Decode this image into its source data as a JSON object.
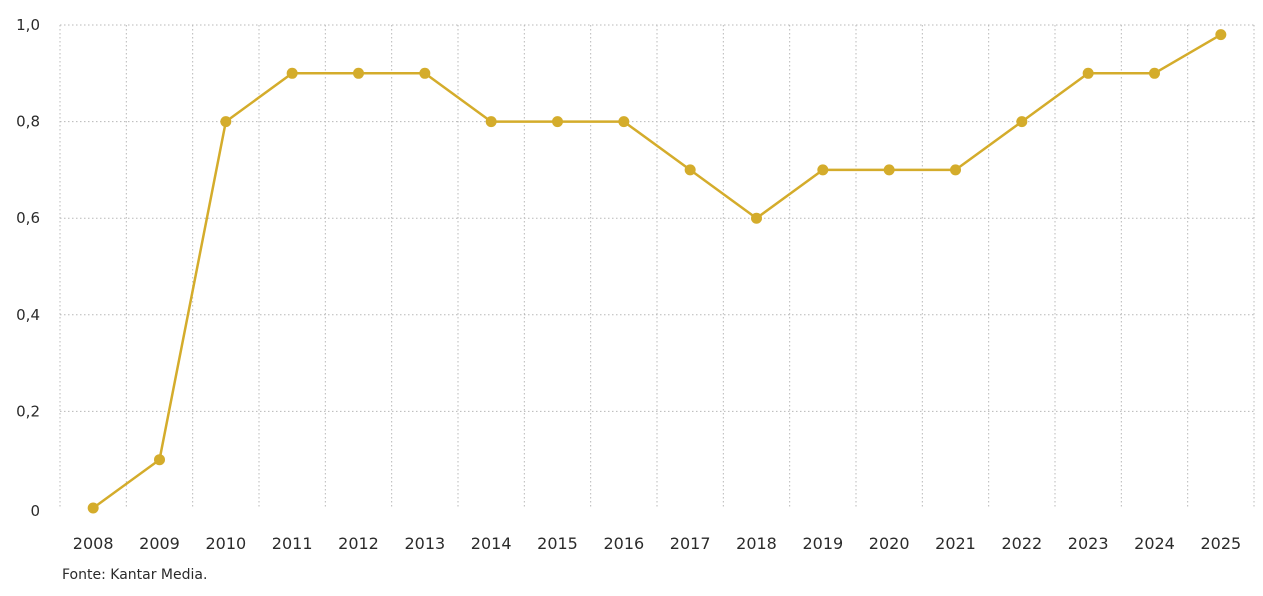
{
  "chart_data": {
    "type": "line",
    "title": "",
    "xlabel": "",
    "ylabel": "",
    "categories": [
      "2008",
      "2009",
      "2010",
      "2011",
      "2012",
      "2013",
      "2014",
      "2015",
      "2016",
      "2017",
      "2018",
      "2019",
      "2020",
      "2021",
      "2022",
      "2023",
      "2024",
      "2025"
    ],
    "series": [
      {
        "values": [
          0,
          0.1,
          0.8,
          0.9,
          0.9,
          0.9,
          0.8,
          0.8,
          0.8,
          0.7,
          0.6,
          0.7,
          0.7,
          0.7,
          0.8,
          0.9,
          0.9,
          0.98
        ],
        "color": "#d4ac2b"
      }
    ],
    "ylim": [
      0,
      1.0
    ],
    "y_ticks": [
      {
        "value": 0,
        "label": "0"
      },
      {
        "value": 0.2,
        "label": "0,2"
      },
      {
        "value": 0.4,
        "label": "0,4"
      },
      {
        "value": 0.6,
        "label": "0,6"
      },
      {
        "value": 0.8,
        "label": "0,8"
      },
      {
        "value": 1.0,
        "label": "1,0"
      }
    ],
    "grid": true,
    "grid_style": "dotted",
    "legend": "none"
  },
  "source": "Fonte: Kantar Media.",
  "colors": {
    "line": "#d4ac2b",
    "grid": "#b8b8b8",
    "text": "#2b2b2b"
  }
}
